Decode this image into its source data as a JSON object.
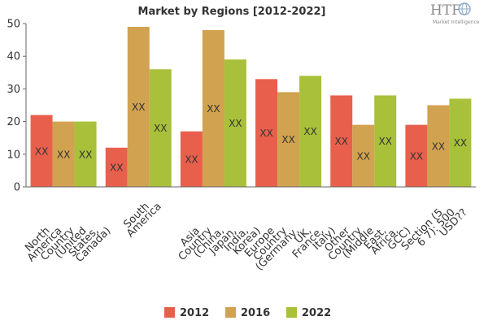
{
  "logo": {
    "mark": "HTF",
    "subtitle": "Market Intelligence"
  },
  "chart_data": {
    "type": "bar",
    "title": "Market by Regions [2012-2022]",
    "xlabel": "",
    "ylabel": "",
    "ylim": [
      0,
      50
    ],
    "yticks": [
      0,
      10,
      20,
      30,
      40,
      50
    ],
    "grid": false,
    "legend_position": "bottom",
    "categories": [
      "North America Country (United States, Canada)",
      "South America",
      "Asia Country (China, Japan, India, Korea)",
      "Europe Country (Germany, UK, France, Italy)",
      "Other Country (Middle East, Africa, GCC)",
      "Section (5 6 7): 500 USD??"
    ],
    "category_lines": [
      [
        "North",
        "America",
        "Country",
        "(United",
        "States,",
        "Canada)"
      ],
      [
        "South",
        "America"
      ],
      [
        "Asia",
        "Country",
        "(China,",
        "Japan,",
        "India,",
        "Korea)"
      ],
      [
        "Europe",
        "Country",
        "(Germany,",
        "UK,",
        "France,",
        "Italy)"
      ],
      [
        "Other",
        "Country",
        "(Middle",
        "East,",
        "Africa,",
        "GCC)"
      ],
      [
        "Section (5",
        "6 7): 500",
        "USD??"
      ]
    ],
    "series": [
      {
        "name": "2012",
        "color": "#e8604c",
        "values": [
          22,
          12,
          17,
          33,
          28,
          19
        ]
      },
      {
        "name": "2016",
        "color": "#d1a24f",
        "values": [
          20,
          49,
          48,
          29,
          19,
          25
        ]
      },
      {
        "name": "2022",
        "color": "#a8c03a",
        "values": [
          20,
          36,
          39,
          34,
          28,
          27
        ]
      }
    ],
    "data_label": "XX"
  }
}
